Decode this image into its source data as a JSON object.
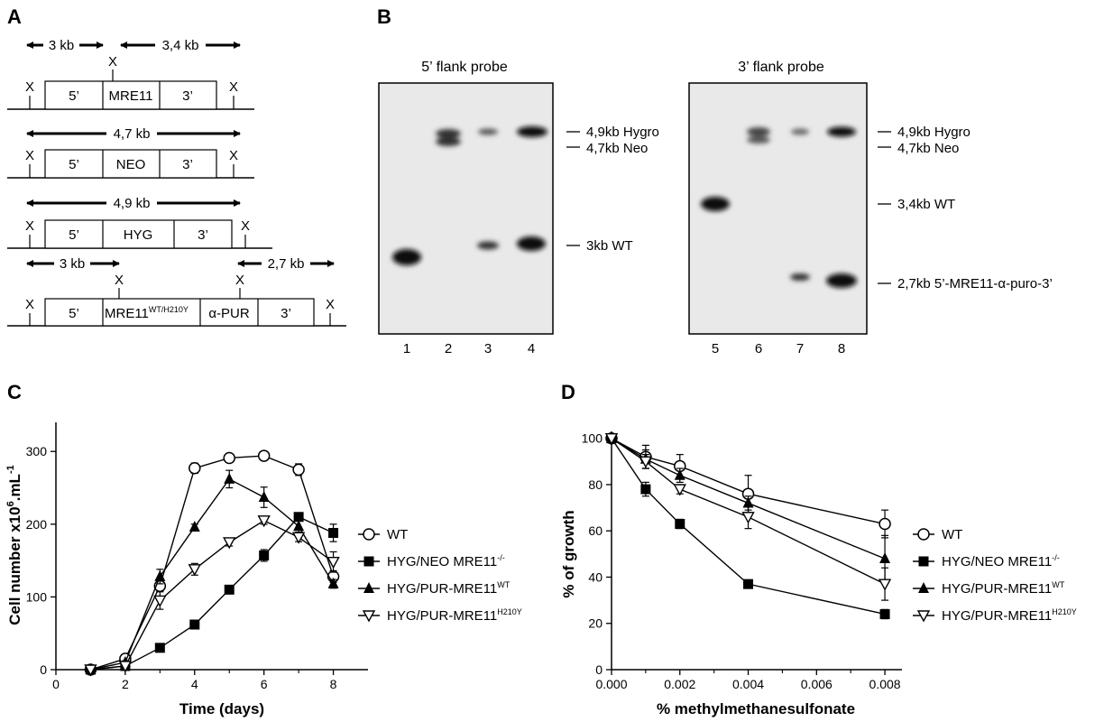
{
  "panels": {
    "A": {
      "letter": "A",
      "rows": [
        {
          "x_label": "X",
          "spans": [
            {
              "label": "3 kb"
            },
            {
              "label": "3,4 kb"
            }
          ],
          "segments": [
            "5’",
            "MRE11",
            "3’"
          ]
        },
        {
          "x_label": "X",
          "spans": [
            {
              "label": "4,7 kb"
            }
          ],
          "segments": [
            "5’",
            "NEO",
            "3’"
          ]
        },
        {
          "x_label": "X",
          "spans": [
            {
              "label": "4,9 kb"
            }
          ],
          "segments": [
            "5’",
            "HYG",
            "3’"
          ]
        },
        {
          "x_label": "X",
          "spans": [
            {
              "label": "3 kb"
            },
            {
              "label": "2,7 kb"
            }
          ],
          "segments": [
            "5’",
            "MRE11",
            "α-PUR",
            "3’"
          ],
          "mre11_superscript": "WT/H210Y"
        }
      ]
    },
    "B": {
      "letter": "B",
      "blots": [
        {
          "title": "5’ flank probe",
          "lanes": [
            "1",
            "2",
            "3",
            "4"
          ],
          "band_labels": [
            "4,9kb Hygro",
            "4,7kb Neo",
            "3kb WT"
          ]
        },
        {
          "title": "3’ flank probe",
          "lanes": [
            "5",
            "6",
            "7",
            "8"
          ],
          "band_labels": [
            "4,9kb Hygro",
            "4,7kb Neo",
            "3,4kb WT",
            "2,7kb 5’-MRE11-α-puro-3’"
          ]
        }
      ]
    },
    "C": {
      "letter": "C"
    },
    "D": {
      "letter": "D"
    }
  },
  "chart_data": [
    {
      "type": "line",
      "panel": "C",
      "xlabel": "Time (days)",
      "ylabel_main": "Cell number x10",
      "ylabel_sup1": "6",
      "ylabel_mid": ".mL",
      "ylabel_sup2": "-1",
      "xlim": [
        0,
        9
      ],
      "ylim": [
        0,
        340
      ],
      "x_ticks": [
        "0",
        "2",
        "4",
        "6",
        "8"
      ],
      "y_ticks": [
        "0",
        "100",
        "200",
        "300"
      ],
      "series": [
        {
          "name": "WT",
          "marker": "circle-open",
          "x": [
            1,
            2,
            3,
            4,
            5,
            6,
            7,
            8
          ],
          "y": [
            0,
            15,
            115,
            277,
            291,
            294,
            275,
            128
          ],
          "err": [
            3,
            3,
            7,
            7,
            4,
            4,
            8,
            8
          ]
        },
        {
          "name": "HYG/NEO MRE11",
          "name_sup": "-/-",
          "marker": "square-filled",
          "x": [
            1,
            2,
            3,
            4,
            5,
            6,
            7,
            8
          ],
          "y": [
            0,
            5,
            30,
            62,
            110,
            157,
            210,
            188
          ],
          "err": [
            2,
            2,
            3,
            6,
            4,
            8,
            5,
            12
          ]
        },
        {
          "name": "HYG/PUR-MRE11",
          "name_sup": "WT",
          "marker": "triangle-filled",
          "x": [
            1,
            2,
            3,
            4,
            5,
            6,
            7,
            8
          ],
          "y": [
            0,
            10,
            128,
            196,
            262,
            237,
            197,
            118
          ],
          "err": [
            2,
            2,
            10,
            4,
            12,
            14,
            8,
            6
          ]
        },
        {
          "name": "HYG/PUR-MRE11",
          "name_sup": "H210Y",
          "marker": "triangle-open",
          "x": [
            1,
            2,
            3,
            4,
            5,
            6,
            7,
            8
          ],
          "y": [
            0,
            5,
            95,
            138,
            175,
            205,
            182,
            148
          ],
          "err": [
            2,
            2,
            12,
            8,
            5,
            5,
            6,
            14
          ]
        }
      ]
    },
    {
      "type": "line",
      "panel": "D",
      "xlabel": "% methylmethanesulfonate",
      "ylabel": "% of growth",
      "xlim": [
        0,
        0.0085
      ],
      "ylim": [
        0,
        103
      ],
      "x_ticks": [
        "0.000",
        "0.002",
        "0.004",
        "0.006",
        "0.008"
      ],
      "y_ticks": [
        "0",
        "20",
        "40",
        "60",
        "80",
        "100"
      ],
      "series": [
        {
          "name": "WT",
          "marker": "circle-open",
          "x": [
            0,
            0.001,
            0.002,
            0.004,
            0.008
          ],
          "y": [
            100,
            92,
            88,
            76,
            63
          ],
          "err": [
            1,
            5,
            5,
            8,
            6
          ]
        },
        {
          "name": "HYG/NEO MRE11",
          "name_sup": "-/-",
          "marker": "square-filled",
          "x": [
            0,
            0.001,
            0.002,
            0.004,
            0.008
          ],
          "y": [
            100,
            78,
            63,
            37,
            24
          ],
          "err": [
            1,
            3,
            2,
            1,
            2
          ]
        },
        {
          "name": "HYG/PUR-MRE11",
          "name_sup": "WT",
          "marker": "triangle-filled",
          "x": [
            0,
            0.001,
            0.002,
            0.004,
            0.008
          ],
          "y": [
            100,
            91,
            84,
            72,
            48
          ],
          "err": [
            1,
            4,
            3,
            3,
            10
          ]
        },
        {
          "name": "HYG/PUR-MRE11",
          "name_sup": "H210Y",
          "marker": "triangle-open",
          "x": [
            0,
            0.001,
            0.002,
            0.004,
            0.008
          ],
          "y": [
            100,
            90,
            78,
            66,
            37
          ],
          "err": [
            1,
            3,
            2,
            5,
            7
          ]
        }
      ]
    }
  ]
}
